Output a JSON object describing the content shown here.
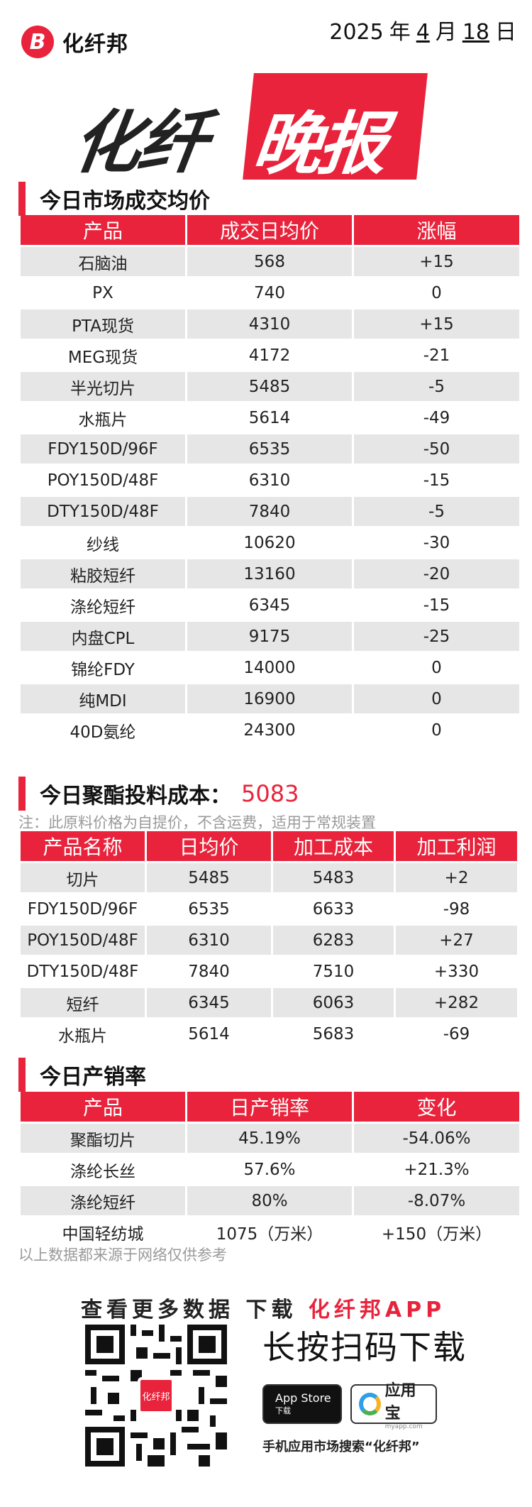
{
  "header": {
    "brand": "化纤邦",
    "logo_letter": "B",
    "date": {
      "year": "2025",
      "year_unit": "年",
      "month": "4",
      "month_unit": "月",
      "day": "18",
      "day_unit": "日"
    }
  },
  "banner": {
    "dark_text": "化纤",
    "red_text": "晚报"
  },
  "section1": {
    "title": "今日市场成交均价",
    "headers": [
      "产品",
      "成交日均价",
      "涨幅"
    ],
    "rows": [
      {
        "product": "石脑油",
        "price": "568",
        "change": "+15",
        "dir": "up"
      },
      {
        "product": "PX",
        "price": "740",
        "change": "0",
        "dir": "zero"
      },
      {
        "product": "PTA现货",
        "price": "4310",
        "change": "+15",
        "dir": "up"
      },
      {
        "product": "MEG现货",
        "price": "4172",
        "change": "-21",
        "dir": "down"
      },
      {
        "product": "半光切片",
        "price": "5485",
        "change": "-5",
        "dir": "down"
      },
      {
        "product": "水瓶片",
        "price": "5614",
        "change": "-49",
        "dir": "down"
      },
      {
        "product": "FDY150D/96F",
        "price": "6535",
        "change": "-50",
        "dir": "down"
      },
      {
        "product": "POY150D/48F",
        "price": "6310",
        "change": "-15",
        "dir": "down"
      },
      {
        "product": "DTY150D/48F",
        "price": "7840",
        "change": "-5",
        "dir": "down"
      },
      {
        "product": "纱线",
        "price": "10620",
        "change": "-30",
        "dir": "down"
      },
      {
        "product": "粘胶短纤",
        "price": "13160",
        "change": "-20",
        "dir": "down"
      },
      {
        "product": "涤纶短纤",
        "price": "6345",
        "change": "-15",
        "dir": "down"
      },
      {
        "product": "内盘CPL",
        "price": "9175",
        "change": "-25",
        "dir": "down"
      },
      {
        "product": "锦纶FDY",
        "price": "14000",
        "change": "0",
        "dir": "zero"
      },
      {
        "product": "纯MDI",
        "price": "16900",
        "change": "0",
        "dir": "zero"
      },
      {
        "product": "40D氨纶",
        "price": "24300",
        "change": "0",
        "dir": "zero"
      }
    ]
  },
  "section2": {
    "title": "今日聚酯投料成本：",
    "value": "5083",
    "note": "注：此原料价格为自提价，不含运费，适用于常规装置",
    "headers": [
      "产品名称",
      "日均价",
      "加工成本",
      "加工利润"
    ],
    "rows": [
      {
        "product": "切片",
        "price": "5485",
        "cost": "5483",
        "profit": "+2",
        "dir": "up"
      },
      {
        "product": "FDY150D/96F",
        "price": "6535",
        "cost": "6633",
        "profit": "-98",
        "dir": "down"
      },
      {
        "product": "POY150D/48F",
        "price": "6310",
        "cost": "6283",
        "profit": "+27",
        "dir": "up"
      },
      {
        "product": "DTY150D/48F",
        "price": "7840",
        "cost": "7510",
        "profit": "+330",
        "dir": "up"
      },
      {
        "product": "短纤",
        "price": "6345",
        "cost": "6063",
        "profit": "+282",
        "dir": "up"
      },
      {
        "product": "水瓶片",
        "price": "5614",
        "cost": "5683",
        "profit": "-69",
        "dir": "down"
      }
    ]
  },
  "section3": {
    "title": "今日产销率",
    "headers": [
      "产品",
      "日产销率",
      "变化"
    ],
    "rows": [
      {
        "product": "聚酯切片",
        "rate": "45.19%",
        "change": "-54.06%",
        "dir": "down"
      },
      {
        "product": "涤纶长丝",
        "rate": "57.6%",
        "change": "+21.3%",
        "dir": "up"
      },
      {
        "product": "涤纶短纤",
        "rate": "80%",
        "change": "-8.07%",
        "dir": "down"
      },
      {
        "product": "中国轻纺城",
        "rate": "1075（万米）",
        "change": "+150（万米）",
        "dir": "up"
      }
    ],
    "source_note": "以上数据都来源于网络仅供参考"
  },
  "promo": {
    "line_prefix": "查看更多数据  下载",
    "line_red": "化纤邦APP",
    "press_text": "长按扫码下载",
    "qr_center_label": "化纤邦",
    "appstore_line1": "App Store",
    "appstore_line2": "下载",
    "yyb_name": "应用宝",
    "yyb_sub": "myapp.com",
    "search_tip": "手机应用市场搜索“化纤邦”"
  },
  "colors": {
    "accent": "#e8233b",
    "up": "#e8233b",
    "down": "#4caf50",
    "zero": "#c8c8c8",
    "row_gray": "#e6e6e6"
  }
}
